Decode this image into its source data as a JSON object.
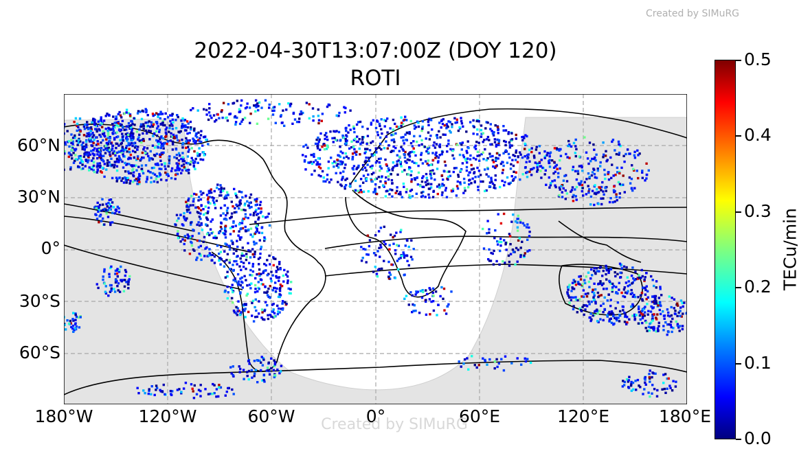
{
  "watermark": "Created by SIMuRG",
  "title": {
    "line1": "2022-04-30T13:07:00Z (DOY 120)",
    "line2": "ROTI"
  },
  "map": {
    "lon_range": [
      -180,
      180
    ],
    "lat_range": [
      -90,
      90
    ],
    "gridlines": "dashed",
    "night_shading_color": "#e4e4e4",
    "coastline_color": "#000000",
    "x_ticks": [
      "180°W",
      "120°W",
      "60°W",
      "0°",
      "60°E",
      "120°E",
      "180°E"
    ],
    "y_ticks": [
      "60°N",
      "30°N",
      "0°",
      "30°S",
      "60°S"
    ]
  },
  "colorbar": {
    "label": "TECu/min",
    "min": 0.0,
    "max": 0.5,
    "ticks": [
      "0.0",
      "0.1",
      "0.2",
      "0.3",
      "0.4",
      "0.5"
    ],
    "colormap": "jet"
  }
}
